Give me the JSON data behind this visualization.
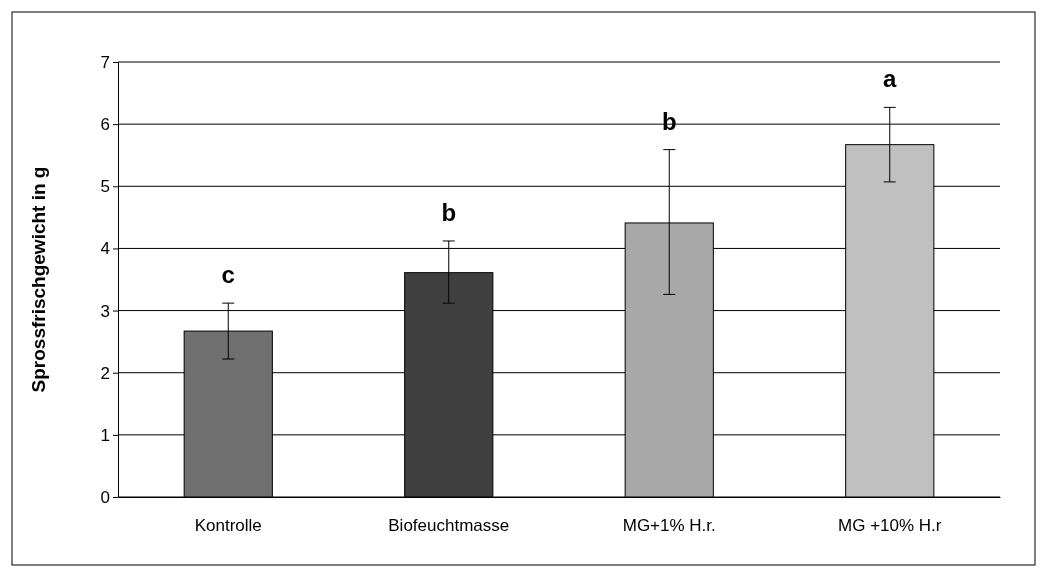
{
  "chart_data": {
    "type": "bar",
    "ylabel": "Sprossfrischgewicht in g",
    "categories": [
      "Kontrolle",
      "Biofeuchtmasse",
      "MG+1% H.r.",
      "MG +10% H.r"
    ],
    "values": [
      2.67,
      3.61,
      4.41,
      5.67
    ],
    "colors": [
      "#707070",
      "#404040",
      "#a8a8a8",
      "#c0c0c0"
    ],
    "errors": [
      [
        2.22,
        3.12
      ],
      [
        3.12,
        4.12
      ],
      [
        3.26,
        5.59
      ],
      [
        5.07,
        6.27
      ]
    ],
    "ylim": [
      0,
      7
    ],
    "yticks": [
      0,
      1,
      2,
      3,
      4,
      5,
      6,
      7
    ],
    "grid": "y",
    "annotations": [
      "c",
      "b",
      "b",
      "a"
    ]
  }
}
